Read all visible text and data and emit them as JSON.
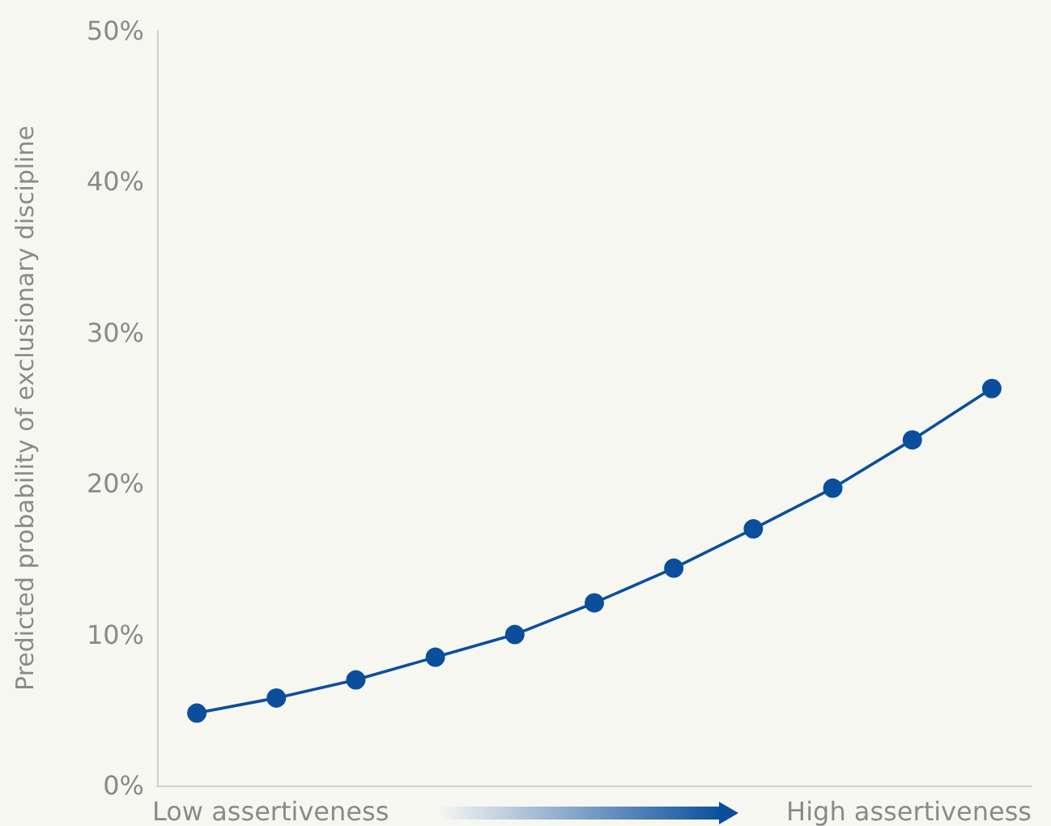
{
  "chart_data": {
    "type": "line",
    "ylabel": "Predicted probability of exclusionary discipline",
    "categories": [
      null,
      null,
      null,
      null,
      null,
      null,
      null,
      null,
      null,
      null,
      null
    ],
    "series": [
      {
        "color": "#0b4f9c",
        "values": [
          4.8,
          5.8,
          7.0,
          8.5,
          10.0,
          12.1,
          14.4,
          17.0,
          19.7,
          22.9,
          26.3
        ]
      }
    ],
    "ylim": [
      0,
      50
    ],
    "yticks": [
      {
        "value": 0,
        "label": "0%"
      },
      {
        "value": 10,
        "label": "10%"
      },
      {
        "value": 20,
        "label": "20%"
      },
      {
        "value": 30,
        "label": "30%"
      },
      {
        "value": 40,
        "label": "40%"
      },
      {
        "value": 50,
        "label": "50%"
      }
    ],
    "annotations": [
      "Low assertiveness",
      "High assertiveness"
    ],
    "grid": false,
    "marker": "circle",
    "line_style": "solid"
  }
}
